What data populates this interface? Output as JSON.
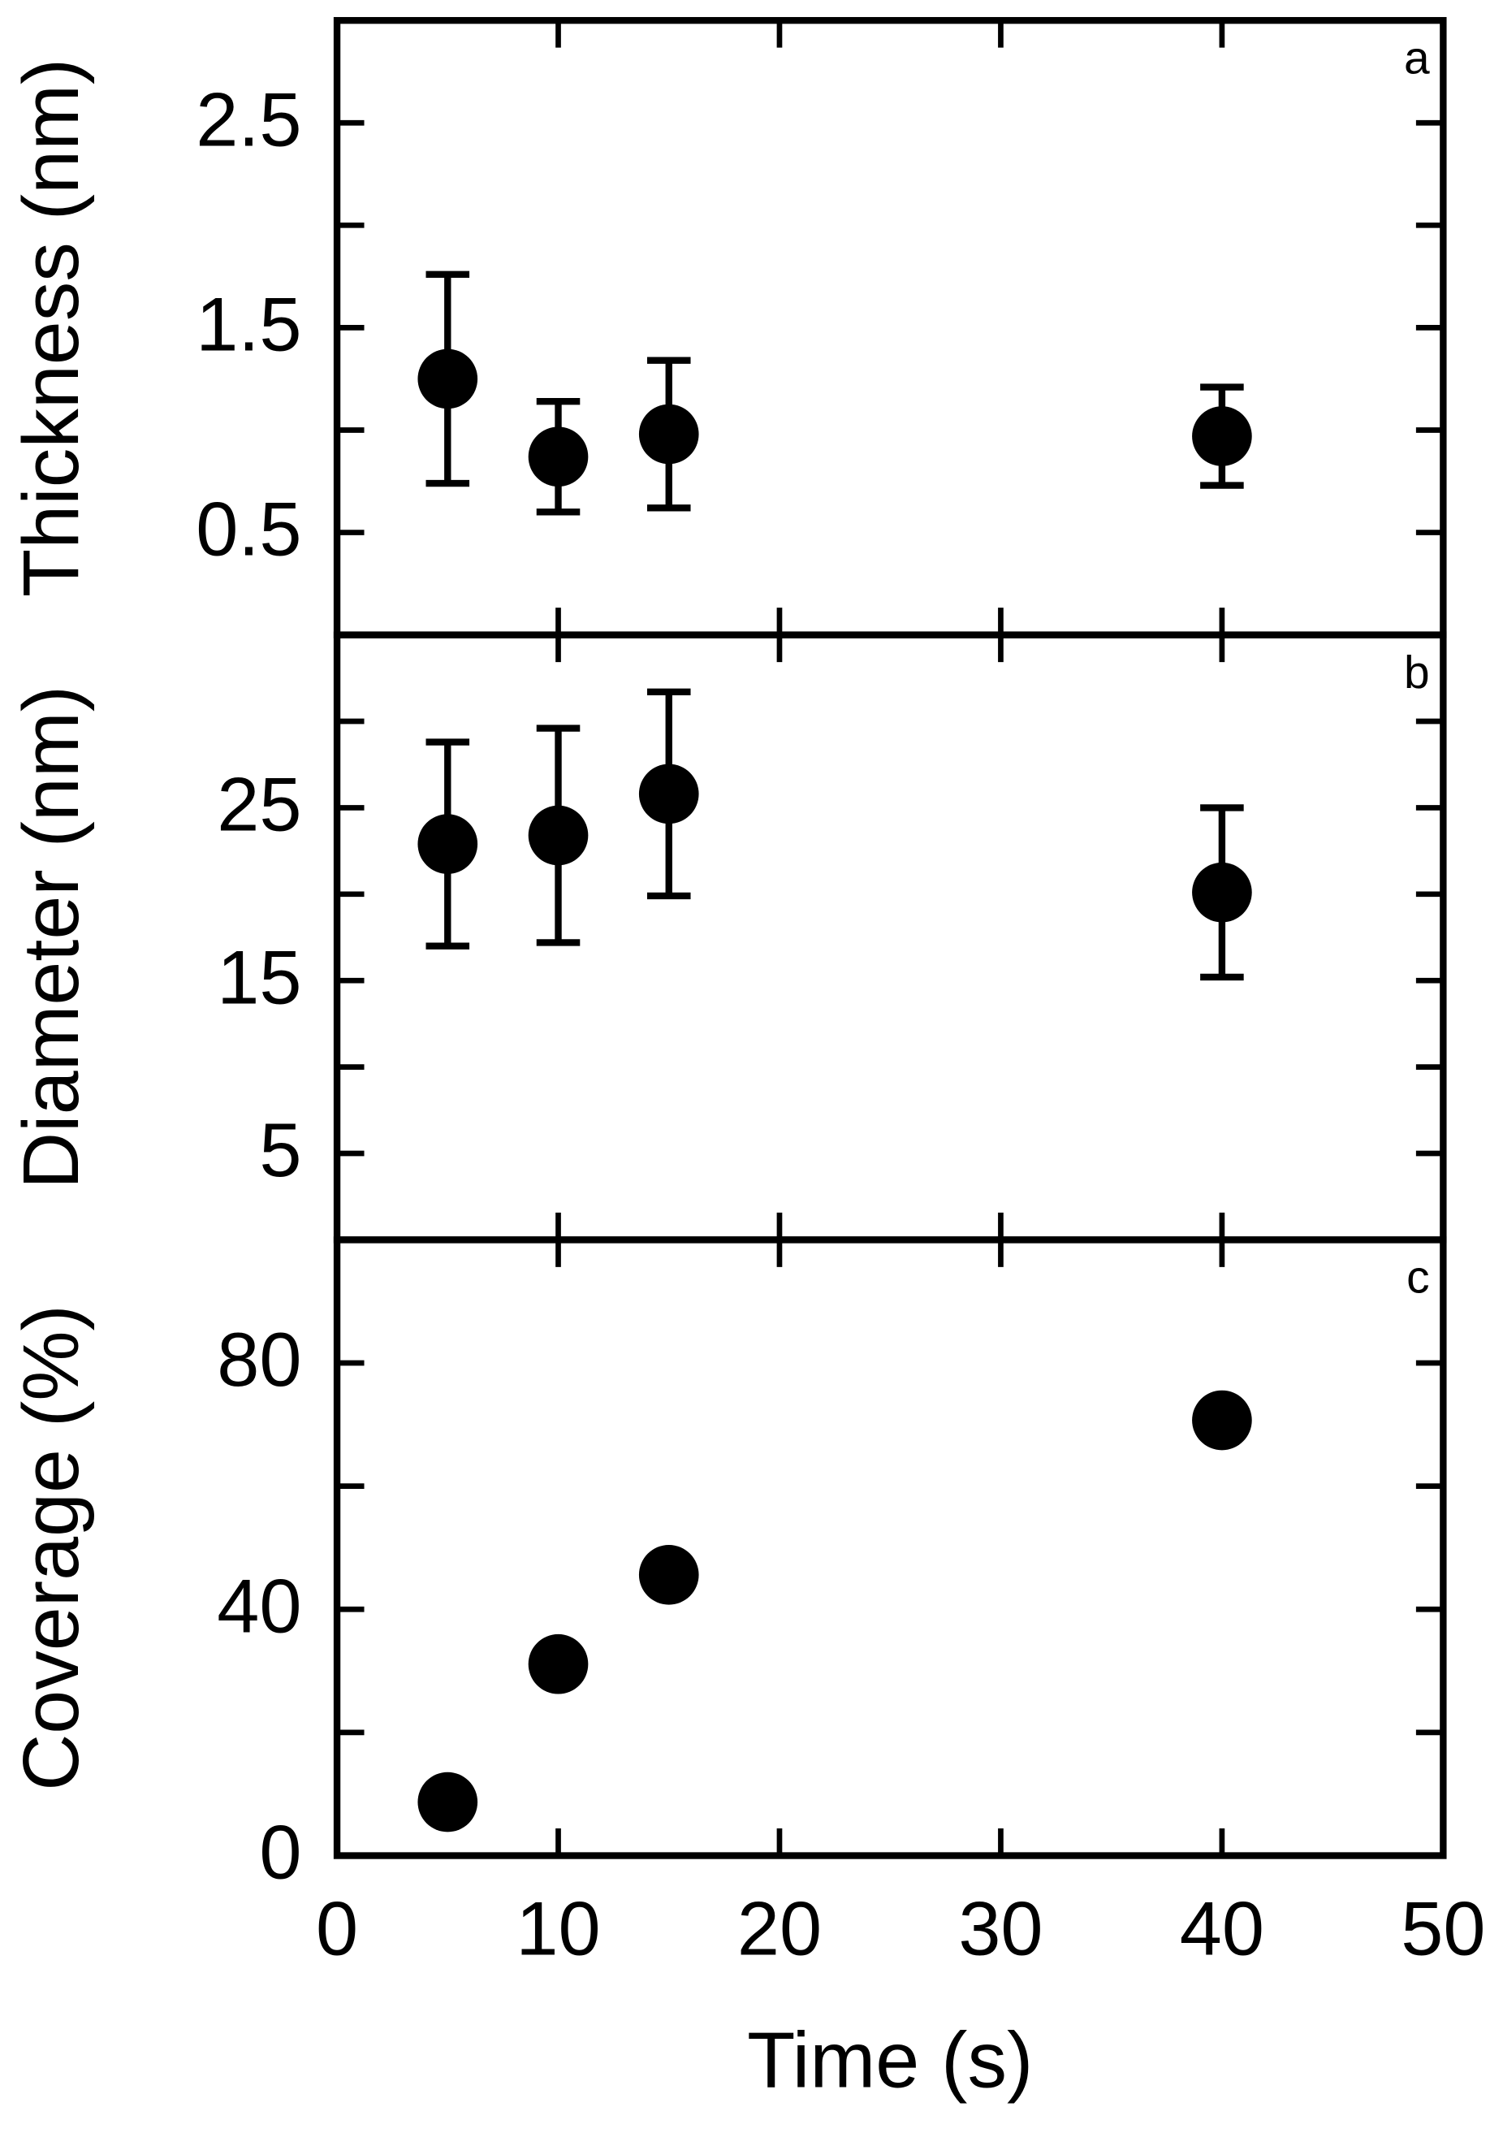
{
  "chart_data": [
    {
      "type": "scatter",
      "panel_label": "a",
      "ylabel": "Thickness (nm)",
      "color": "#000000",
      "x": [
        5,
        10,
        15,
        40
      ],
      "values": [
        1.25,
        0.87,
        0.98,
        0.97
      ],
      "errors": [
        0.51,
        0.27,
        0.36,
        0.24
      ],
      "xlim": [
        0,
        50
      ],
      "ylim": [
        0,
        3
      ],
      "yticks": [
        0.5,
        1.5,
        2.5
      ],
      "yminorticks": [
        1,
        2
      ]
    },
    {
      "type": "scatter",
      "panel_label": "b",
      "ylabel": "Diameter (nm)",
      "color": "#000000",
      "x": [
        5,
        10,
        15,
        40
      ],
      "values": [
        22.9,
        23.4,
        25.8,
        20.1
      ],
      "errors": [
        5.9,
        6.2,
        5.9,
        4.9
      ],
      "xlim": [
        0,
        50
      ],
      "ylim": [
        0,
        35
      ],
      "yticks": [
        5,
        15,
        25
      ],
      "yminorticks": [
        10,
        20,
        30
      ]
    },
    {
      "type": "scatter",
      "panel_label": "c",
      "ylabel": "Coverage (%)",
      "xlabel": "Time (s)",
      "color": "#000000",
      "x": [
        5,
        10,
        15,
        40
      ],
      "values": [
        8.7,
        31.1,
        45.6,
        70.7
      ],
      "xlim": [
        0,
        50
      ],
      "xticks": [
        0,
        10,
        20,
        30,
        40,
        50
      ],
      "ylim": [
        0,
        100
      ],
      "yticks": [
        0,
        40,
        80
      ],
      "yminorticks": [
        20,
        60
      ]
    }
  ]
}
